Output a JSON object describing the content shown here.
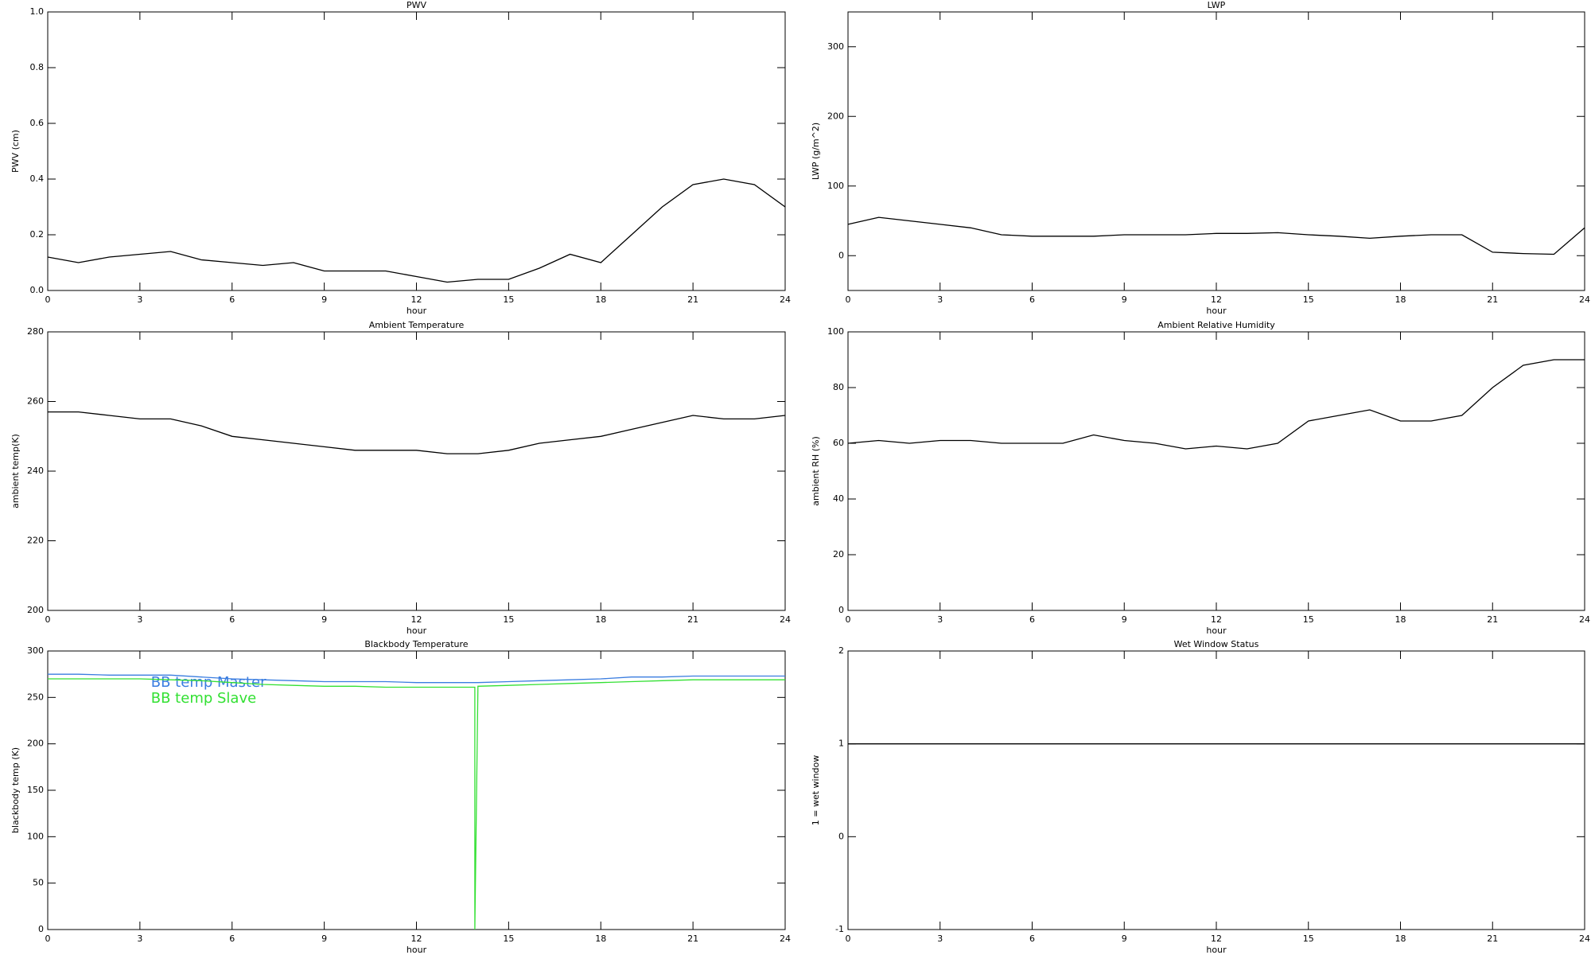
{
  "chart_data": [
    {
      "type": "line",
      "title": "PWV",
      "x_label": "hour",
      "y_label": "PWV (cm)",
      "color": "#000000",
      "x": [
        0,
        1,
        2,
        3,
        4,
        5,
        6,
        7,
        8,
        9,
        10,
        11,
        12,
        13,
        14,
        15,
        16,
        17,
        18,
        19,
        20,
        21,
        22,
        23,
        24
      ],
      "values": [
        0.12,
        0.1,
        0.12,
        0.13,
        0.14,
        0.11,
        0.1,
        0.09,
        0.1,
        0.07,
        0.07,
        0.07,
        0.05,
        0.03,
        0.04,
        0.04,
        0.08,
        0.13,
        0.1,
        0.2,
        0.3,
        0.38,
        0.4,
        0.38,
        0.3
      ],
      "xlim": [
        0,
        24
      ],
      "xticks": [
        0,
        3,
        6,
        9,
        12,
        15,
        18,
        21,
        24
      ],
      "ylim": [
        0,
        1
      ],
      "yticks": [
        {
          "value": 0,
          "label": "0.0"
        },
        0.2,
        0.4,
        0.6,
        0.8,
        {
          "value": 1,
          "label": "1.0"
        }
      ]
    },
    {
      "type": "line",
      "title": "LWP",
      "x_label": "hour",
      "y_label": "LWP (g/m^2)",
      "color": "#000000",
      "x": [
        0,
        1,
        2,
        3,
        4,
        5,
        6,
        7,
        8,
        9,
        10,
        11,
        12,
        13,
        14,
        15,
        16,
        17,
        18,
        19,
        20,
        21,
        22,
        23,
        24
      ],
      "values": [
        45,
        55,
        50,
        45,
        40,
        30,
        28,
        28,
        28,
        30,
        30,
        30,
        32,
        32,
        33,
        30,
        28,
        25,
        28,
        30,
        30,
        5,
        3,
        2,
        40
      ],
      "xlim": [
        0,
        24
      ],
      "xticks": [
        0,
        3,
        6,
        9,
        12,
        15,
        18,
        21,
        24
      ],
      "ylim": [
        -50,
        350
      ],
      "yticks": [
        0,
        100,
        200,
        300
      ]
    },
    {
      "type": "line",
      "title": "Ambient Temperature",
      "x_label": "hour",
      "y_label": "ambient temp(K)",
      "color": "#000000",
      "x": [
        0,
        1,
        2,
        3,
        4,
        5,
        6,
        7,
        8,
        9,
        10,
        11,
        12,
        13,
        14,
        15,
        16,
        17,
        18,
        19,
        20,
        21,
        22,
        23,
        24
      ],
      "values": [
        257,
        257,
        256,
        255,
        255,
        253,
        250,
        249,
        248,
        247,
        246,
        246,
        246,
        245,
        245,
        246,
        248,
        249,
        250,
        252,
        254,
        256,
        255,
        255,
        256
      ],
      "xlim": [
        0,
        24
      ],
      "xticks": [
        0,
        3,
        6,
        9,
        12,
        15,
        18,
        21,
        24
      ],
      "ylim": [
        200,
        280
      ],
      "yticks": [
        200,
        220,
        240,
        260,
        280
      ]
    },
    {
      "type": "line",
      "title": "Ambient Relative Humidity",
      "x_label": "hour",
      "y_label": "ambient RH (%)",
      "color": "#000000",
      "x": [
        0,
        1,
        2,
        3,
        4,
        5,
        6,
        7,
        8,
        9,
        10,
        11,
        12,
        13,
        14,
        15,
        16,
        17,
        18,
        19,
        20,
        21,
        22,
        23,
        24
      ],
      "values": [
        60,
        61,
        60,
        61,
        61,
        60,
        60,
        60,
        63,
        61,
        60,
        58,
        59,
        58,
        60,
        68,
        70,
        72,
        68,
        68,
        70,
        80,
        88,
        90,
        90
      ],
      "xlim": [
        0,
        24
      ],
      "xticks": [
        0,
        3,
        6,
        9,
        12,
        15,
        18,
        21,
        24
      ],
      "ylim": [
        0,
        100
      ],
      "yticks": [
        0,
        20,
        40,
        60,
        80,
        100
      ]
    },
    {
      "type": "line",
      "title": "Blackbody Temperature",
      "x_label": "hour",
      "y_label": "blackbody temp (K)",
      "x": [
        0,
        1,
        2,
        3,
        4,
        5,
        6,
        7,
        8,
        9,
        10,
        11,
        12,
        13,
        13.9,
        13.9,
        14,
        15,
        16,
        17,
        18,
        19,
        20,
        21,
        22,
        23,
        24
      ],
      "series": [
        {
          "name": "BB temp Master",
          "color": "#3a7de0",
          "values": [
            275,
            275,
            274,
            274,
            274,
            272,
            270,
            269,
            268,
            267,
            267,
            267,
            266,
            266,
            266,
            266,
            266,
            267,
            268,
            269,
            270,
            272,
            272,
            273,
            273,
            273,
            273
          ]
        },
        {
          "name": "BB temp Slave",
          "color": "#33e033",
          "values": [
            270,
            270,
            270,
            270,
            269,
            268,
            266,
            264,
            263,
            262,
            262,
            261,
            261,
            261,
            261,
            0,
            262,
            263,
            264,
            265,
            266,
            267,
            268,
            269,
            269,
            269,
            269
          ]
        }
      ],
      "legend": "upper left",
      "xlim": [
        0,
        24
      ],
      "xticks": [
        0,
        3,
        6,
        9,
        12,
        15,
        18,
        21,
        24
      ],
      "ylim": [
        0,
        300
      ],
      "yticks": [
        0,
        50,
        100,
        150,
        200,
        250,
        300
      ]
    },
    {
      "type": "line",
      "title": "Wet Window Status",
      "x_label": "hour",
      "y_label": "1 = wet window",
      "color": "#000000",
      "x": [
        0,
        24
      ],
      "values": [
        1,
        1
      ],
      "xlim": [
        0,
        24
      ],
      "xticks": [
        0,
        3,
        6,
        9,
        12,
        15,
        18,
        21,
        24
      ],
      "ylim": [
        -1,
        2
      ],
      "yticks": [
        -1,
        0,
        1,
        2
      ]
    }
  ]
}
